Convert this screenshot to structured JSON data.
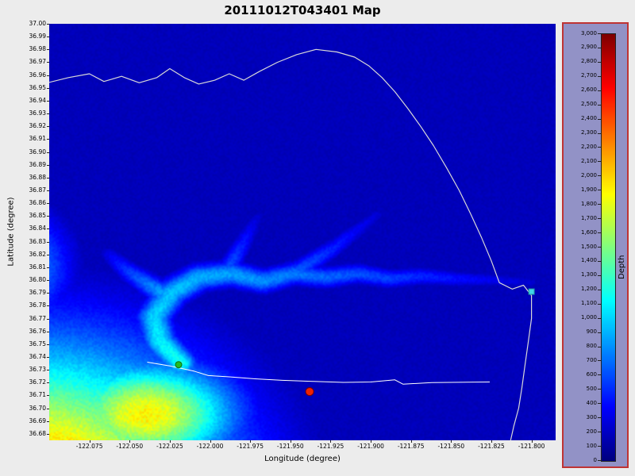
{
  "title": "20111012T043401 Map",
  "axes": {
    "x_label": "Longitude (degree)",
    "y_label": "Latitude (degree)",
    "x_ticks": [
      "-122.075",
      "-122.050",
      "-122.025",
      "-122.000",
      "-121.975",
      "-121.950",
      "-121.925",
      "-121.900",
      "-121.875",
      "-121.850",
      "-121.825",
      "-121.800"
    ],
    "y_ticks": [
      "37.00",
      "36.99",
      "36.98",
      "36.97",
      "36.96",
      "36.95",
      "36.94",
      "36.93",
      "36.92",
      "36.91",
      "36.90",
      "36.89",
      "36.88",
      "36.87",
      "36.86",
      "36.85",
      "36.84",
      "36.83",
      "36.82",
      "36.81",
      "36.80",
      "36.79",
      "36.78",
      "36.77",
      "36.76",
      "36.75",
      "36.74",
      "36.73",
      "36.72",
      "36.71",
      "36.70",
      "36.69",
      "36.68"
    ]
  },
  "colorbar": {
    "label": "Depth",
    "ticks": [
      "3,000",
      "2,900",
      "2,800",
      "2,700",
      "2,600",
      "2,500",
      "2,400",
      "2,300",
      "2,200",
      "2,100",
      "2,000",
      "1,900",
      "1,800",
      "1,700",
      "1,600",
      "1,500",
      "1,400",
      "1,300",
      "1,200",
      "1,100",
      "1,000",
      "900",
      "800",
      "700",
      "600",
      "500",
      "400",
      "300",
      "200",
      "100",
      "0"
    ],
    "range": [
      0,
      3000
    ],
    "colormap": "jet",
    "panel_bg": "#9292c6",
    "panel_border": "#bf3434"
  },
  "chart_data": {
    "type": "heatmap",
    "title": "20111012T043401 Map",
    "xlabel": "Longitude (degree)",
    "ylabel": "Latitude (degree)",
    "value_label": "Depth",
    "value_range": [
      0,
      3000
    ],
    "lon_range": [
      -122.1,
      -121.785
    ],
    "lat_range": [
      36.675,
      37.0
    ],
    "colormap": "jet",
    "background_value": 170,
    "blobs": [
      {
        "lon": -122.11,
        "lat": 36.63,
        "sx": 0.115,
        "sy": 0.115,
        "amp": 2300
      },
      {
        "lon": -122.04,
        "lat": 36.695,
        "sx": 0.055,
        "sy": 0.04,
        "amp": 1900
      },
      {
        "lon": -122.115,
        "lat": 36.81,
        "sx": 0.03,
        "sy": 0.045,
        "amp": 800
      }
    ],
    "channels": [
      {
        "name": "monterey-canyon",
        "pts": [
          [
            -122.018,
            36.735,
            1200,
            0.01
          ],
          [
            -122.031,
            36.752,
            1100,
            0.011
          ],
          [
            -122.035,
            36.771,
            1000,
            0.011
          ],
          [
            -122.024,
            36.79,
            950,
            0.011
          ],
          [
            -122.007,
            36.802,
            900,
            0.0105
          ],
          [
            -121.987,
            36.805,
            850,
            0.01
          ],
          [
            -121.967,
            36.799,
            790,
            0.0095
          ],
          [
            -121.948,
            36.805,
            730,
            0.009
          ],
          [
            -121.928,
            36.802,
            670,
            0.0085
          ],
          [
            -121.908,
            36.805,
            610,
            0.008
          ],
          [
            -121.888,
            36.801,
            550,
            0.0075
          ],
          [
            -121.868,
            36.803,
            480,
            0.007
          ],
          [
            -121.848,
            36.801,
            410,
            0.0065
          ],
          [
            -121.824,
            36.8,
            330,
            0.0055
          ],
          [
            -121.8,
            36.798,
            240,
            0.005
          ]
        ]
      },
      {
        "name": "soquel-branch",
        "pts": [
          [
            -121.948,
            36.805,
            650,
            0.008
          ],
          [
            -121.922,
            36.826,
            450,
            0.007
          ],
          [
            -121.896,
            36.851,
            250,
            0.0055
          ]
        ]
      },
      {
        "name": "north-branch",
        "pts": [
          [
            -121.99,
            36.806,
            640,
            0.0075
          ],
          [
            -121.979,
            36.83,
            430,
            0.0065
          ],
          [
            -121.97,
            36.85,
            230,
            0.0055
          ]
        ]
      },
      {
        "name": "northwest-spur",
        "pts": [
          [
            -122.03,
            36.79,
            850,
            0.009
          ],
          [
            -122.05,
            36.806,
            550,
            0.008
          ],
          [
            -122.063,
            36.82,
            320,
            0.0065
          ]
        ]
      }
    ],
    "coastline": [
      [
        -122.101,
        36.954
      ],
      [
        -122.088,
        36.958
      ],
      [
        -122.075,
        36.961
      ],
      [
        -122.066,
        36.955
      ],
      [
        -122.055,
        36.959
      ],
      [
        -122.044,
        36.954
      ],
      [
        -122.033,
        36.958
      ],
      [
        -122.025,
        36.965
      ],
      [
        -122.016,
        36.958
      ],
      [
        -122.007,
        36.953
      ],
      [
        -121.997,
        36.956
      ],
      [
        -121.988,
        36.961
      ],
      [
        -121.979,
        36.956
      ],
      [
        -121.969,
        36.963
      ],
      [
        -121.958,
        36.97
      ],
      [
        -121.946,
        36.976
      ],
      [
        -121.934,
        36.98
      ],
      [
        -121.921,
        36.978
      ],
      [
        -121.91,
        36.974
      ],
      [
        -121.901,
        36.967
      ],
      [
        -121.893,
        36.958
      ],
      [
        -121.885,
        36.947
      ],
      [
        -121.877,
        36.934
      ],
      [
        -121.869,
        36.92
      ],
      [
        -121.861,
        36.905
      ],
      [
        -121.853,
        36.888
      ],
      [
        -121.845,
        36.87
      ],
      [
        -121.838,
        36.852
      ],
      [
        -121.831,
        36.833
      ],
      [
        -121.825,
        36.815
      ],
      [
        -121.82,
        36.798
      ],
      [
        -121.812,
        36.793
      ],
      [
        -121.805,
        36.796
      ],
      [
        -121.8,
        36.788
      ],
      [
        -121.8,
        36.77
      ],
      [
        -121.802,
        36.752
      ],
      [
        -121.804,
        36.734
      ],
      [
        -121.806,
        36.716
      ],
      [
        -121.808,
        36.7
      ],
      [
        -121.811,
        36.686
      ],
      [
        -121.813,
        36.675
      ]
    ],
    "track": [
      [
        -122.039,
        36.736
      ],
      [
        -122.025,
        36.733
      ],
      [
        -122.01,
        36.729
      ],
      [
        -122.001,
        36.7255
      ],
      [
        -121.988,
        36.7245
      ],
      [
        -121.972,
        36.723
      ],
      [
        -121.955,
        36.7218
      ],
      [
        -121.936,
        36.721
      ],
      [
        -121.917,
        36.7202
      ],
      [
        -121.9,
        36.7205
      ],
      [
        -121.885,
        36.7222
      ],
      [
        -121.88,
        36.7188
      ],
      [
        -121.862,
        36.72
      ],
      [
        -121.84,
        36.7203
      ],
      [
        -121.826,
        36.7205
      ]
    ],
    "markers": [
      {
        "name": "start",
        "shape": "circle",
        "lon": -122.0195,
        "lat": 36.734,
        "color": "#22bb22",
        "edge": "#0e6e0e",
        "size": 8
      },
      {
        "name": "vehicle",
        "shape": "circle",
        "lon": -121.938,
        "lat": 36.713,
        "color": "#ee2200",
        "edge": "#7a0000",
        "size": 10
      },
      {
        "name": "station",
        "shape": "square",
        "lon": -121.8,
        "lat": 36.791,
        "color": "#3fd4e8",
        "edge": "#1f8fa0",
        "size": 7
      }
    ],
    "line_colors": {
      "coastline": "#d8d8d8",
      "track": "#ffffff"
    }
  }
}
